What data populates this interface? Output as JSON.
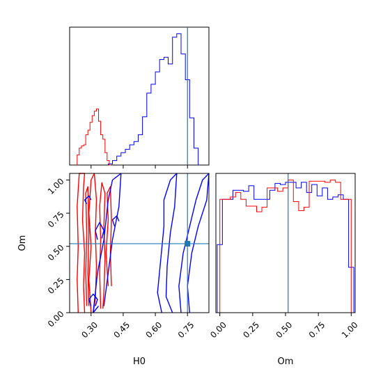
{
  "chart_data": [
    {
      "type": "histogram",
      "panel": "H0 marginal",
      "x_param": "H0",
      "xlim": [
        0.2,
        0.85
      ],
      "truth": 0.75,
      "show_y_ticks": false,
      "series": [
        {
          "color": "#ff0000",
          "bin_edges": [
            0.235,
            0.245,
            0.255,
            0.265,
            0.275,
            0.285,
            0.295,
            0.305,
            0.315,
            0.325,
            0.335,
            0.345,
            0.355,
            0.365,
            0.375,
            0.385,
            0.395
          ],
          "counts": [
            9,
            15,
            17,
            18,
            27,
            31,
            38,
            44,
            48,
            50,
            39,
            27,
            23,
            11,
            4,
            0
          ]
        },
        {
          "color": "#0000ff",
          "bin_edges": [
            0.38,
            0.4,
            0.42,
            0.44,
            0.46,
            0.48,
            0.5,
            0.52,
            0.54,
            0.56,
            0.58,
            0.6,
            0.62,
            0.64,
            0.66,
            0.68,
            0.7,
            0.72,
            0.74,
            0.76,
            0.78,
            0.8
          ],
          "counts": [
            1,
            4,
            8,
            11,
            14,
            18,
            21,
            27,
            43,
            64,
            72,
            83,
            94,
            96,
            90,
            114,
            117,
            99,
            76,
            42,
            15
          ]
        }
      ]
    },
    {
      "type": "contour",
      "panel": "H0 vs Om",
      "x_param": "H0",
      "y_param": "Om",
      "xlim": [
        0.2,
        0.85
      ],
      "ylim": [
        0,
        1.05
      ],
      "xticks": [
        "0.30",
        "0.45",
        "0.60",
        "0.75"
      ],
      "yticks": [
        "0.00",
        "0.25",
        "0.50",
        "0.75",
        "1.00"
      ],
      "xlabel": "H0",
      "ylabel": "Om",
      "truth": {
        "x": 0.75,
        "y": 0.52
      },
      "series": [
        {
          "color": "#ff0000",
          "contours": [
            [
              [
                0.27,
                0.0
              ],
              [
                0.265,
                0.2
              ],
              [
                0.27,
                0.45
              ],
              [
                0.26,
                0.7
              ],
              [
                0.265,
                0.95
              ],
              [
                0.27,
                1.05
              ],
              [
                0.245,
                1.05
              ],
              [
                0.235,
                0.8
              ],
              [
                0.24,
                0.5
              ],
              [
                0.235,
                0.25
              ],
              [
                0.24,
                0.0
              ]
            ],
            [
              [
                0.3,
                0.0
              ],
              [
                0.29,
                0.25
              ],
              [
                0.3,
                0.5
              ],
              [
                0.29,
                0.75
              ],
              [
                0.3,
                1.0
              ],
              [
                0.315,
                1.05
              ],
              [
                0.325,
                0.85
              ],
              [
                0.32,
                0.6
              ],
              [
                0.325,
                0.35
              ],
              [
                0.32,
                0.1
              ],
              [
                0.31,
                0.0
              ]
            ],
            [
              [
                0.345,
                0.03
              ],
              [
                0.34,
                0.3
              ],
              [
                0.345,
                0.55
              ],
              [
                0.34,
                0.8
              ],
              [
                0.35,
                0.98
              ],
              [
                0.365,
                0.9
              ],
              [
                0.36,
                0.65
              ],
              [
                0.365,
                0.4
              ],
              [
                0.36,
                0.15
              ],
              [
                0.355,
                0.03
              ]
            ],
            [
              [
                0.28,
                0.05
              ],
              [
                0.275,
                0.3
              ],
              [
                0.28,
                0.6
              ],
              [
                0.275,
                0.9
              ],
              [
                0.285,
                0.95
              ],
              [
                0.29,
                0.6
              ],
              [
                0.285,
                0.3
              ],
              [
                0.29,
                0.05
              ]
            ],
            [
              [
                0.38,
                0.2
              ],
              [
                0.37,
                0.45
              ],
              [
                0.38,
                0.7
              ],
              [
                0.375,
                0.9
              ],
              [
                0.39,
                0.95
              ],
              [
                0.395,
                0.7
              ],
              [
                0.39,
                0.45
              ],
              [
                0.395,
                0.2
              ]
            ]
          ]
        },
        {
          "color": "#0000ff",
          "contours": [
            [
              [
                0.335,
                0.05
              ],
              [
                0.31,
                0.0
              ],
              [
                0.33,
                0.3
              ],
              [
                0.36,
                0.55
              ],
              [
                0.38,
                0.85
              ],
              [
                0.4,
                1.0
              ],
              [
                0.44,
                1.05
              ],
              [
                0.43,
                0.8
              ],
              [
                0.4,
                0.55
              ],
              [
                0.38,
                0.3
              ],
              [
                0.36,
                0.05
              ]
            ],
            [
              [
                0.63,
                0.0
              ],
              [
                0.61,
                0.15
              ],
              [
                0.625,
                0.4
              ],
              [
                0.64,
                0.65
              ],
              [
                0.64,
                0.85
              ],
              [
                0.67,
                1.0
              ],
              [
                0.7,
                1.05
              ],
              [
                0.69,
                0.8
              ],
              [
                0.67,
                0.6
              ],
              [
                0.655,
                0.35
              ],
              [
                0.65,
                0.12
              ],
              [
                0.68,
                0.0
              ]
            ],
            [
              [
                0.72,
                0.0
              ],
              [
                0.71,
                0.2
              ],
              [
                0.73,
                0.45
              ],
              [
                0.76,
                0.65
              ],
              [
                0.79,
                0.85
              ],
              [
                0.82,
                1.0
              ],
              [
                0.85,
                1.05
              ],
              [
                0.84,
                0.85
              ],
              [
                0.8,
                0.65
              ],
              [
                0.77,
                0.45
              ],
              [
                0.75,
                0.2
              ],
              [
                0.76,
                0.0
              ]
            ],
            [
              [
                0.28,
                0.82
              ],
              [
                0.27,
                0.85
              ],
              [
                0.29,
                0.88
              ],
              [
                0.3,
                0.85
              ]
            ],
            [
              [
                0.33,
                0.55
              ],
              [
                0.32,
                0.62
              ],
              [
                0.34,
                0.68
              ],
              [
                0.36,
                0.62
              ],
              [
                0.35,
                0.56
              ]
            ],
            [
              [
                0.41,
                0.65
              ],
              [
                0.4,
                0.7
              ],
              [
                0.42,
                0.73
              ],
              [
                0.43,
                0.69
              ]
            ],
            [
              [
                0.3,
                0.05
              ],
              [
                0.29,
                0.1
              ],
              [
                0.31,
                0.14
              ],
              [
                0.33,
                0.1
              ],
              [
                0.32,
                0.05
              ]
            ]
          ]
        }
      ]
    },
    {
      "type": "histogram",
      "panel": "Om marginal",
      "x_param": "Om",
      "xlim": [
        -0.03,
        1.03
      ],
      "xticks": [
        "0.00",
        "0.25",
        "0.50",
        "0.75",
        "1.00"
      ],
      "xlabel": "Om",
      "truth": 0.52,
      "show_y_ticks": false,
      "series": [
        {
          "color": "#0000ff",
          "bin_edges": [
            -0.02,
            0.02,
            0.06,
            0.1,
            0.14,
            0.18,
            0.22,
            0.26,
            0.3,
            0.34,
            0.38,
            0.42,
            0.46,
            0.5,
            0.54,
            0.58,
            0.62,
            0.66,
            0.7,
            0.74,
            0.78,
            0.82,
            0.86,
            0.9,
            0.94,
            0.98,
            1.02
          ],
          "counts": [
            60,
            100,
            100,
            108,
            108,
            107,
            112,
            100,
            100,
            100,
            108,
            114,
            113,
            115,
            115,
            110,
            115,
            106,
            113,
            103,
            110,
            100,
            102,
            104,
            100,
            40
          ]
        },
        {
          "color": "#ff0000",
          "bin_edges": [
            0.0,
            0.04,
            0.08,
            0.12,
            0.16,
            0.2,
            0.24,
            0.28,
            0.32,
            0.36,
            0.4,
            0.44,
            0.48,
            0.52,
            0.56,
            0.6,
            0.64,
            0.68,
            0.72,
            0.76,
            0.8,
            0.84,
            0.88,
            0.92,
            0.96,
            1.0
          ],
          "counts": [
            100,
            100,
            102,
            106,
            100,
            94,
            94,
            89,
            93,
            110,
            110,
            107,
            110,
            117,
            98,
            90,
            93,
            116,
            116,
            116,
            115,
            117,
            115,
            100,
            100
          ]
        }
      ]
    }
  ]
}
